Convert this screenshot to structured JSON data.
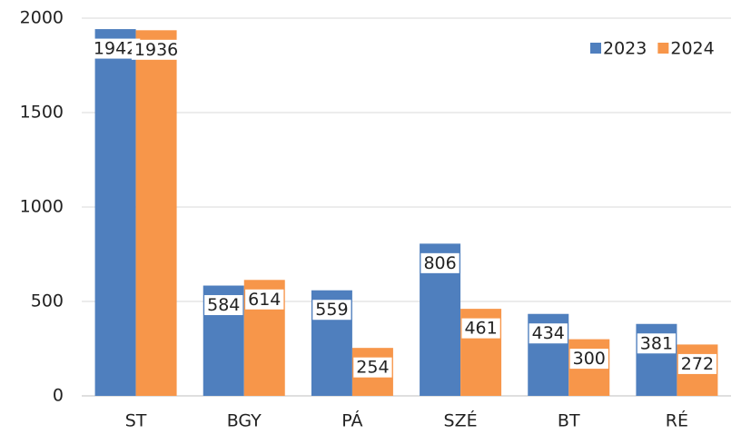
{
  "chart_data": {
    "type": "bar",
    "categories": [
      "ST",
      "BGY",
      "PÁ",
      "SZÉ",
      "BT",
      "RÉ"
    ],
    "series": [
      {
        "name": "2023",
        "color": "#4f7fbe",
        "values": [
          1942,
          584,
          559,
          806,
          434,
          381
        ]
      },
      {
        "name": "2024",
        "color": "#f7964a",
        "values": [
          1936,
          614,
          254,
          461,
          300,
          272
        ]
      }
    ],
    "ylim": [
      0,
      2000
    ],
    "yticks": [
      0,
      500,
      1000,
      1500,
      2000
    ],
    "grid": true,
    "legend": "top-right"
  }
}
